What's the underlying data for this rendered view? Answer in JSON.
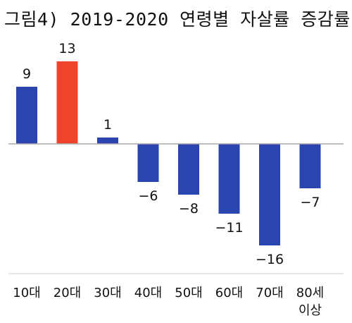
{
  "chart_data": {
    "type": "bar",
    "title": "그림4) 2019-2020 연령별 자살률 증감률",
    "categories": [
      [
        "10대"
      ],
      [
        "20대"
      ],
      [
        "30대"
      ],
      [
        "40대"
      ],
      [
        "50대"
      ],
      [
        "60대"
      ],
      [
        "70대"
      ],
      [
        "80세",
        "이상"
      ]
    ],
    "values": [
      9,
      13,
      1,
      -6,
      -8,
      -11,
      -16,
      -7
    ],
    "value_labels": [
      "9",
      "13",
      "1",
      "−6",
      "−8",
      "−11",
      "−16",
      "−7"
    ],
    "ylim": [
      -16,
      13
    ],
    "grid": false,
    "legend": "none",
    "colors": {
      "default_bar": "#2a45b0",
      "highlight_bar": "#f0432b",
      "baseline": "#aaaaaa",
      "axis_line": "#cfcfcf"
    },
    "highlight_index": 1
  }
}
